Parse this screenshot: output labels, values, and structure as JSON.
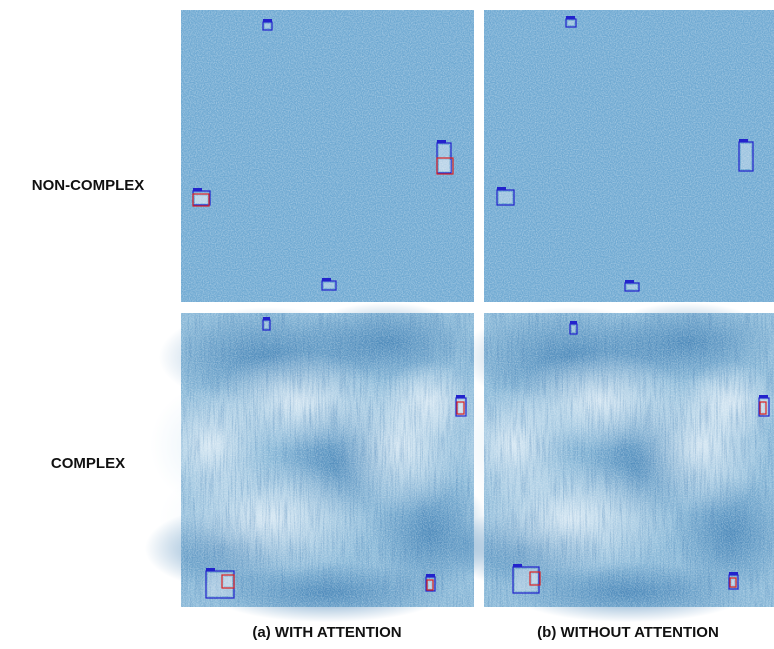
{
  "row_labels": [
    "NON-COMPLEX",
    "COMPLEX"
  ],
  "column_captions": [
    "(a) WITH ATTENTION",
    "(b) WITHOUT ATTENTION"
  ]
}
